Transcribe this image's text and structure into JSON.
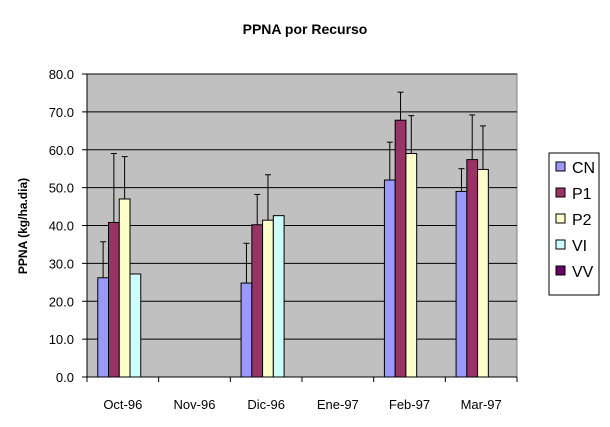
{
  "chart_data": {
    "type": "bar",
    "title": "PPNA por Recurso",
    "xlabel": "",
    "ylabel": "PPNA (kg/ha.dia)",
    "ylim": [
      0,
      80
    ],
    "y_ticks": [
      "0.0",
      "10.0",
      "20.0",
      "30.0",
      "40.0",
      "50.0",
      "60.0",
      "70.0",
      "80.0"
    ],
    "y_tick_values": [
      0,
      10,
      20,
      30,
      40,
      50,
      60,
      70,
      80
    ],
    "categories": [
      "Oct-96",
      "Nov-96",
      "Dic-96",
      "Ene-97",
      "Feb-97",
      "Mar-97"
    ],
    "grid": true,
    "plot_background": "#c0c0c0",
    "legend_position": "right",
    "series": [
      {
        "name": "CN",
        "color": "#9999ff",
        "values": [
          26.2,
          null,
          24.8,
          null,
          52.0,
          49.0
        ],
        "error": [
          9.5,
          null,
          10.5,
          null,
          10.0,
          6.0
        ]
      },
      {
        "name": "P1",
        "color": "#993366",
        "values": [
          40.8,
          null,
          40.2,
          null,
          67.8,
          57.4
        ],
        "error": [
          18.2,
          null,
          8.0,
          null,
          7.4,
          11.8
        ]
      },
      {
        "name": "P2",
        "color": "#ffffcc",
        "values": [
          47.0,
          null,
          41.4,
          null,
          59.0,
          54.8
        ],
        "error": [
          11.2,
          null,
          12.0,
          null,
          10.0,
          11.5
        ]
      },
      {
        "name": "VI",
        "color": "#ccffff",
        "values": [
          27.2,
          null,
          42.6,
          null,
          null,
          null
        ],
        "error": [
          null,
          null,
          null,
          null,
          null,
          null
        ]
      },
      {
        "name": "VV",
        "color": "#660066",
        "values": [
          null,
          null,
          null,
          null,
          null,
          null
        ],
        "error": [
          null,
          null,
          null,
          null,
          null,
          null
        ]
      }
    ]
  }
}
